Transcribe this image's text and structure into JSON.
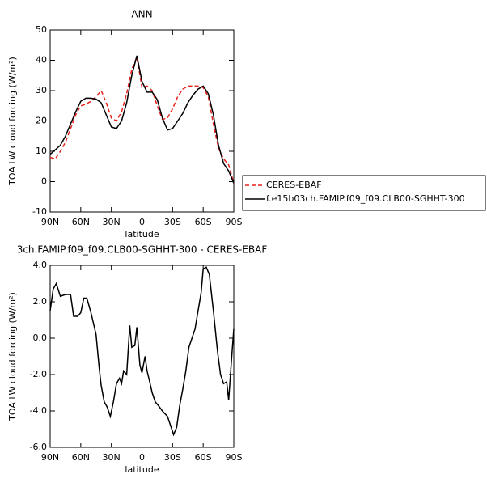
{
  "chart_data": [
    {
      "type": "line",
      "title": "ANN",
      "xlabel": "latitude",
      "ylabel": "TOA LW cloud forcing (W/m²)",
      "x": [
        90,
        85,
        80,
        75,
        70,
        65,
        60,
        55,
        50,
        45,
        40,
        35,
        30,
        25,
        20,
        15,
        10,
        5,
        0,
        -5,
        -10,
        -15,
        -20,
        -25,
        -30,
        -35,
        -40,
        -45,
        -50,
        -55,
        -60,
        -65,
        -70,
        -75,
        -80,
        -85,
        -90
      ],
      "xlim": [
        90,
        -90
      ],
      "xticks": [
        {
          "value": 90,
          "label": "90N"
        },
        {
          "value": 60,
          "label": "60N"
        },
        {
          "value": 30,
          "label": "30N"
        },
        0,
        {
          "value": -30,
          "label": "30S"
        },
        {
          "value": -60,
          "label": "60S"
        },
        {
          "value": -90,
          "label": "90S"
        }
      ],
      "ylim": [
        -10,
        50
      ],
      "yticks": [
        -10,
        0,
        10,
        20,
        30,
        40,
        50
      ],
      "legend": "right",
      "series": [
        {
          "name": "CERES-EBAF",
          "color": "#e8211d",
          "dash": true,
          "values": [
            8,
            7.5,
            10,
            13,
            17.5,
            22,
            25,
            25.5,
            26.5,
            28,
            30,
            26,
            21,
            20,
            23,
            29,
            37,
            41,
            31,
            31.5,
            30,
            25,
            20.5,
            21,
            24,
            28,
            30.5,
            31.5,
            31.5,
            31.5,
            31,
            28,
            19,
            11,
            7.5,
            5.5,
            -0.5
          ]
        },
        {
          "name": "f.e15b03ch.FAMIP.f09_f09.CLB00-SGHHT-300",
          "color": "#000000",
          "dash": false,
          "values": [
            9,
            10.5,
            12,
            15,
            19,
            23,
            26.5,
            27.5,
            27.5,
            27.2,
            26,
            22,
            18,
            17.5,
            20,
            26,
            35,
            41.5,
            33,
            29.5,
            29.5,
            27,
            21,
            17,
            17.5,
            20,
            22.5,
            26,
            28.5,
            30.5,
            31.5,
            29,
            22,
            12,
            6,
            3.5,
            -0.5
          ]
        }
      ]
    },
    {
      "type": "line",
      "title": "3ch.FAMIP.f09_f09.CLB00-SGHHT-300 - CERES-EBAF",
      "xlabel": "latitude",
      "ylabel": "TOA LW cloud forcing (W/m²)",
      "x": [
        90,
        87,
        84,
        80,
        75,
        70,
        67,
        63,
        60,
        57,
        54,
        50,
        45,
        42,
        40,
        37,
        34,
        31,
        28,
        25,
        22,
        20,
        18,
        15,
        12,
        10,
        7,
        5,
        2,
        0,
        -3,
        -5,
        -8,
        -10,
        -13,
        -16,
        -20,
        -25,
        -28,
        -31,
        -34,
        -37,
        -40,
        -43,
        -46,
        -49,
        -52,
        -55,
        -58,
        -60,
        -63,
        -66,
        -70,
        -74,
        -77,
        -80,
        -83,
        -85,
        -88,
        -90
      ],
      "xlim": [
        90,
        -90
      ],
      "xticks": [
        {
          "value": 90,
          "label": "90N"
        },
        {
          "value": 60,
          "label": "60N"
        },
        {
          "value": 30,
          "label": "30N"
        },
        0,
        {
          "value": -30,
          "label": "30S"
        },
        {
          "value": -60,
          "label": "60S"
        },
        {
          "value": -90,
          "label": "90S"
        }
      ],
      "ylim": [
        -6,
        4
      ],
      "yticks": [
        {
          "value": -6,
          "label": "-6.0"
        },
        {
          "value": -4,
          "label": "-4.0"
        },
        {
          "value": -2,
          "label": "-2.0"
        },
        {
          "value": 0,
          "label": "0.0"
        },
        {
          "value": 2,
          "label": "2.0"
        },
        {
          "value": 4,
          "label": "4.0"
        }
      ],
      "series": [
        {
          "color": "#000000",
          "dash": false,
          "values": [
            1.5,
            2.7,
            3.0,
            2.3,
            2.4,
            2.4,
            1.2,
            1.2,
            1.4,
            2.2,
            2.2,
            1.4,
            0.2,
            -1.6,
            -2.6,
            -3.5,
            -3.8,
            -4.3,
            -3.5,
            -2.5,
            -2.2,
            -2.5,
            -1.8,
            -2.0,
            0.7,
            -0.5,
            -0.4,
            0.6,
            -1.5,
            -1.9,
            -1.0,
            -1.8,
            -2.5,
            -3.0,
            -3.5,
            -3.7,
            -4.0,
            -4.3,
            -4.8,
            -5.3,
            -4.9,
            -3.7,
            -2.8,
            -1.8,
            -0.5,
            0.0,
            0.5,
            1.5,
            2.5,
            3.8,
            3.9,
            3.5,
            1.5,
            -0.7,
            -2.0,
            -2.5,
            -2.4,
            -3.4,
            -1.0,
            0.5
          ]
        }
      ]
    }
  ]
}
